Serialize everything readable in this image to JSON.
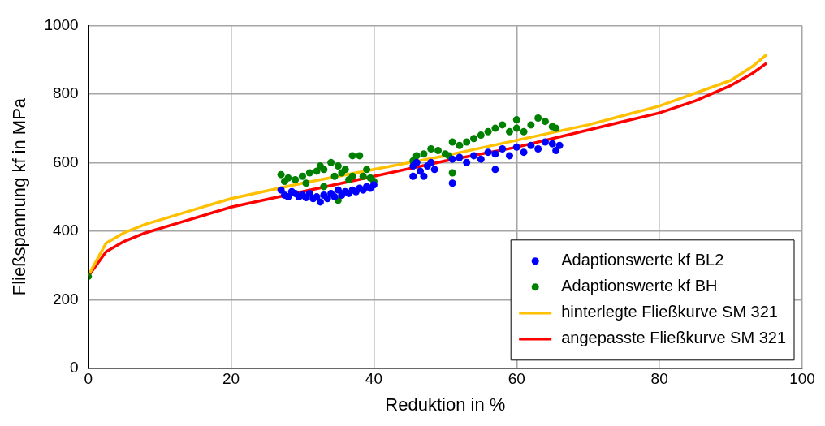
{
  "chart_data": {
    "type": "scatter",
    "xlabel": "Reduktion in %",
    "ylabel": "Fließspannung kf in MPa",
    "xlim": [
      0,
      100
    ],
    "xticks": [
      0,
      20,
      40,
      60,
      80,
      100
    ],
    "ylim": [
      0,
      1000
    ],
    "yticks": [
      0,
      200,
      400,
      600,
      800,
      1000
    ],
    "grid": true,
    "legend": "bottom right",
    "marker": "circle",
    "series": [
      {
        "name": "Adaptionswerte kf BL2",
        "color": "#0000ff",
        "x": [
          27,
          27.5,
          28,
          28.5,
          29,
          29.5,
          30,
          30.5,
          31,
          31.5,
          32,
          32.5,
          33,
          33.5,
          34,
          34.5,
          35,
          35.5,
          36,
          36.5,
          37,
          37.5,
          38,
          38.5,
          39,
          39.5,
          40,
          45.5,
          45.5,
          46,
          46.5,
          47,
          47.5,
          48,
          48.5,
          51,
          51,
          52,
          53,
          54,
          55,
          56,
          57,
          57,
          58,
          59,
          60,
          61,
          62,
          63,
          64,
          65,
          65.5,
          66
        ],
        "values": [
          520,
          505,
          500,
          515,
          510,
          500,
          505,
          498,
          510,
          495,
          500,
          485,
          505,
          495,
          510,
          500,
          520,
          505,
          515,
          510,
          520,
          515,
          525,
          520,
          530,
          525,
          535,
          560,
          590,
          600,
          575,
          560,
          590,
          600,
          580,
          540,
          610,
          615,
          600,
          620,
          610,
          630,
          580,
          625,
          640,
          620,
          645,
          630,
          650,
          640,
          660,
          655,
          635,
          650
        ]
      },
      {
        "name": "Adaptionswerte kf BH",
        "color": "#008000",
        "x": [
          0,
          27,
          27.5,
          28,
          29,
          30,
          30.5,
          31,
          32,
          32.5,
          33,
          33,
          34,
          34.5,
          35,
          35,
          35.5,
          36,
          36.5,
          37,
          37,
          38,
          38.5,
          39,
          39.5,
          40,
          45.5,
          46,
          47,
          48,
          49,
          50,
          50.5,
          51,
          51,
          52,
          53,
          54,
          55,
          56,
          57,
          58,
          59,
          60,
          60,
          61,
          62,
          63,
          64,
          65,
          65.5
        ],
        "values": [
          268,
          565,
          545,
          555,
          550,
          560,
          540,
          570,
          575,
          590,
          580,
          530,
          600,
          560,
          590,
          490,
          570,
          580,
          550,
          620,
          560,
          620,
          560,
          580,
          555,
          545,
          605,
          620,
          625,
          640,
          635,
          625,
          620,
          570,
          660,
          650,
          660,
          670,
          680,
          690,
          700,
          710,
          690,
          700,
          725,
          690,
          710,
          730,
          720,
          705,
          700
        ]
      },
      {
        "name": "hinterlegte Fließkurve SM 321",
        "type": "line",
        "color": "#ffc000",
        "line_style": "solid",
        "marker": "none",
        "x": [
          0,
          2.5,
          5,
          8,
          12,
          20,
          30,
          40,
          50,
          60,
          70,
          80,
          90,
          93,
          95
        ],
        "values": [
          270,
          365,
          395,
          420,
          445,
          495,
          540,
          580,
          620,
          665,
          710,
          765,
          840,
          880,
          915
        ]
      },
      {
        "name": "angepasste Fließkurve SM 321",
        "type": "line",
        "color": "#ff0000",
        "line_style": "solid",
        "marker": "none",
        "x": [
          0,
          2.5,
          5,
          8,
          12,
          20,
          30,
          40,
          50,
          60,
          70,
          80,
          85,
          90,
          93,
          95
        ],
        "values": [
          268,
          340,
          370,
          395,
          420,
          470,
          515,
          560,
          605,
          645,
          695,
          745,
          780,
          825,
          860,
          890
        ]
      }
    ]
  }
}
